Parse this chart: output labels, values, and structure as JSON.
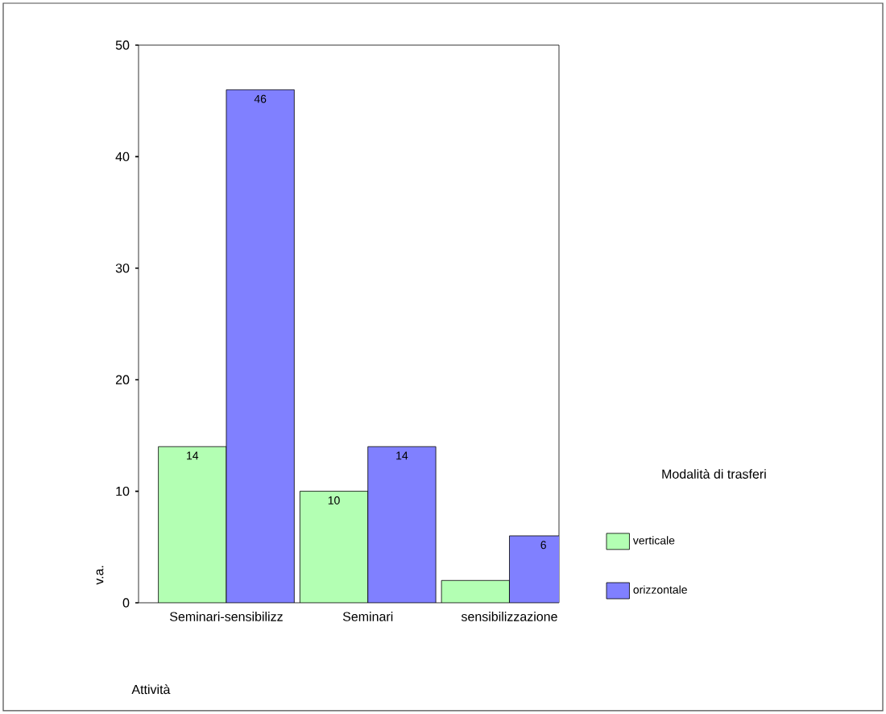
{
  "chart_data": {
    "type": "bar",
    "xlabel": "Attività",
    "ylabel": "v.a.",
    "legend_title": "Modalità di trasferi",
    "categories": [
      "Seminari-sensibilizz",
      "Seminari",
      "sensibilizzazione"
    ],
    "series": [
      {
        "name": "verticale",
        "color": "#b3ffb3",
        "values": [
          14,
          10,
          2
        ],
        "value_labels": [
          "14",
          "10",
          null
        ]
      },
      {
        "name": "orizzontale",
        "color": "#8080ff",
        "values": [
          46,
          14,
          6
        ],
        "value_labels": [
          "46",
          "14",
          "6"
        ]
      }
    ],
    "ylim": [
      0,
      50
    ],
    "yticks": [
      0,
      10,
      20,
      30,
      40,
      50
    ],
    "grid": false,
    "legend": "right"
  }
}
